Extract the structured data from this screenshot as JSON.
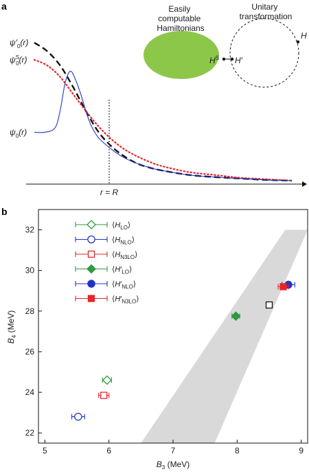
{
  "chart_data": [
    {
      "panel": "a",
      "type": "line",
      "xlabel": "",
      "ylabel": "",
      "marker_label": "r = R",
      "series": [
        {
          "name": "ψ′0(r)",
          "label_main": "ψ′",
          "label_sub": "0",
          "label_tail": "(r)",
          "style": "dashed",
          "color": "#111111",
          "x": [
            0,
            0.05,
            0.1,
            0.15,
            0.2,
            0.25,
            0.3,
            0.35,
            0.4,
            0.45,
            0.5,
            0.6,
            0.7,
            0.8,
            0.9,
            1.0
          ],
          "y": [
            0.98,
            0.92,
            0.82,
            0.67,
            0.5,
            0.35,
            0.25,
            0.18,
            0.13,
            0.1,
            0.08,
            0.05,
            0.035,
            0.025,
            0.015,
            0.01
          ]
        },
        {
          "name": "ψS0(r)",
          "label_main": "ψ",
          "label_sup": "S",
          "label_sub": "0",
          "label_tail": "(r)",
          "style": "dotted",
          "color": "#e3262a",
          "x": [
            0,
            0.05,
            0.1,
            0.15,
            0.2,
            0.25,
            0.3,
            0.35,
            0.4,
            0.45,
            0.5,
            0.6,
            0.7,
            0.8,
            0.9,
            1.0
          ],
          "y": [
            0.86,
            0.82,
            0.74,
            0.62,
            0.5,
            0.39,
            0.3,
            0.23,
            0.18,
            0.14,
            0.11,
            0.07,
            0.05,
            0.03,
            0.02,
            0.01
          ]
        },
        {
          "name": "ψ0(r)",
          "label_main": "ψ",
          "label_sub": "0",
          "label_tail": "(r)",
          "style": "solid",
          "color": "#1f35c9",
          "x": [
            0,
            0.04,
            0.08,
            0.1,
            0.12,
            0.14,
            0.16,
            0.18,
            0.2,
            0.22,
            0.25,
            0.3,
            0.35,
            0.4,
            0.45,
            0.5,
            0.6,
            0.7,
            0.8,
            0.9,
            1.0
          ],
          "y": [
            0.35,
            0.35,
            0.38,
            0.5,
            0.7,
            0.78,
            0.72,
            0.62,
            0.5,
            0.4,
            0.31,
            0.23,
            0.17,
            0.13,
            0.1,
            0.08,
            0.05,
            0.035,
            0.025,
            0.015,
            0.01
          ]
        }
      ],
      "inset": {
        "blob_label_lines": [
          "Easily",
          "computable",
          "Hamiltonians"
        ],
        "blob_color": "#8dc74a",
        "ring_label_lines": [
          "Unitary",
          "transformation"
        ],
        "points": [
          {
            "main": "H",
            "sup": "S"
          },
          {
            "main": "H′"
          },
          {
            "main": "H"
          }
        ]
      }
    },
    {
      "panel": "b",
      "type": "scatter",
      "xlabel": "B3 (MeV)",
      "xlabel_main": "B",
      "xlabel_sub": "3",
      "xlabel_tail": " (MeV)",
      "ylabel": "B4 (MeV)",
      "ylabel_main": "B",
      "ylabel_sub": "4",
      "ylabel_tail": " (MeV)",
      "xlim": [
        4.9,
        9.1
      ],
      "ylim": [
        21.5,
        33
      ],
      "xticks": [
        5,
        6,
        7,
        8,
        9
      ],
      "yticks": [
        22,
        24,
        26,
        28,
        30,
        32
      ],
      "band": {
        "color": "#d9d9d9",
        "x_bottom": [
          6.5,
          7.65
        ],
        "y_bottom": 21.5,
        "x_top": [
          8.75,
          9.1
        ],
        "y_top": 32.0
      },
      "series": [
        {
          "name": "⟨HLO⟩",
          "main": "H",
          "sub": "LO",
          "prime": false,
          "color": "#2e9a3e",
          "marker": "diamond",
          "filled": false,
          "points": [
            {
              "x": 5.97,
              "y": 24.6,
              "xerr": 0.07
            }
          ]
        },
        {
          "name": "⟨HNLO⟩",
          "main": "H",
          "sub": "NLO",
          "prime": false,
          "color": "#1f35c9",
          "marker": "circle",
          "filled": false,
          "points": [
            {
              "x": 5.52,
              "y": 22.8,
              "xerr": 0.1
            }
          ]
        },
        {
          "name": "⟨HN3LO⟩",
          "main": "H",
          "sub": "N3LO",
          "prime": false,
          "color": "#e3262a",
          "marker": "square",
          "filled": false,
          "points": [
            {
              "x": 5.92,
              "y": 23.85,
              "xerr": 0.08
            }
          ]
        },
        {
          "name": "⟨H′LO⟩",
          "main": "H",
          "sub": "LO",
          "prime": true,
          "color": "#2e9a3e",
          "marker": "diamond",
          "filled": true,
          "points": [
            {
              "x": 7.98,
              "y": 27.75,
              "xerr": 0.06
            }
          ]
        },
        {
          "name": "⟨H′NLO⟩",
          "main": "H",
          "sub": "NLO",
          "prime": true,
          "color": "#1f35c9",
          "marker": "circle",
          "filled": true,
          "points": [
            {
              "x": 8.8,
              "y": 29.3,
              "xerr": 0.1
            }
          ]
        },
        {
          "name": "⟨H′N3LO⟩",
          "main": "H",
          "sub": "N3LO",
          "prime": true,
          "color": "#e3262a",
          "marker": "square",
          "filled": true,
          "points": [
            {
              "x": 8.72,
              "y": 29.2,
              "xerr": 0.08
            }
          ]
        },
        {
          "name": "",
          "main": "",
          "sub": "",
          "prime": false,
          "color": "#111111",
          "marker": "square",
          "filled": false,
          "in_legend": false,
          "points": [
            {
              "x": 8.5,
              "y": 28.3,
              "xerr": 0
            }
          ]
        }
      ]
    }
  ]
}
